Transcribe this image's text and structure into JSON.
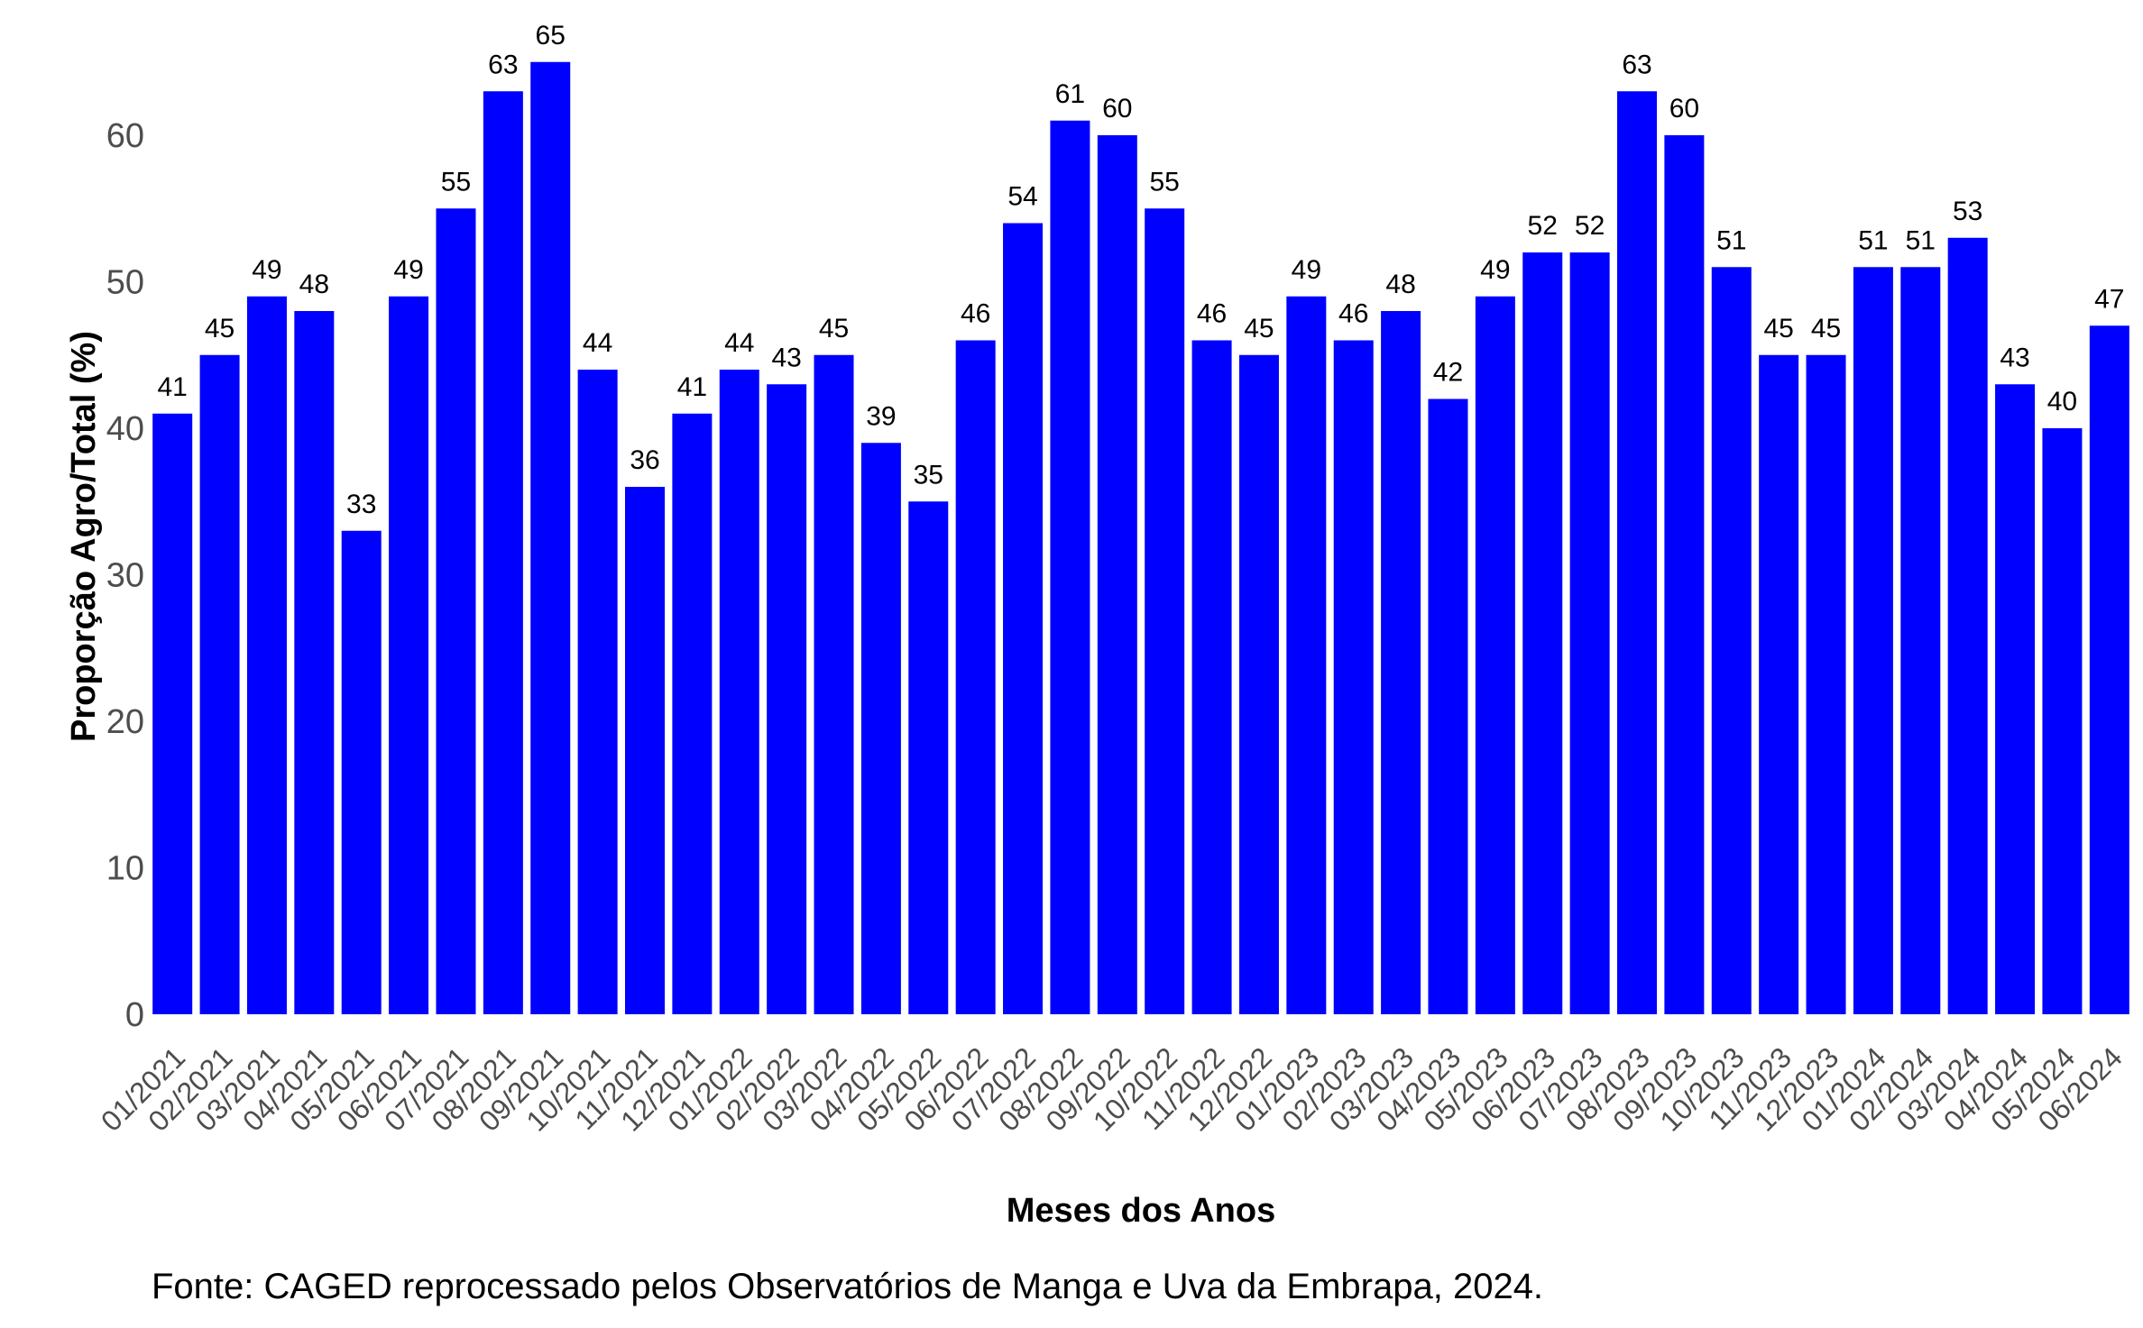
{
  "chart_data": {
    "type": "bar",
    "xlabel": "Meses dos Anos",
    "ylabel": "Proporção Agro/Total (%)",
    "caption": "Fonte: CAGED reprocessado pelos Observatórios de Manga e Uva da Embrapa, 2024.",
    "ylim": [
      0,
      65
    ],
    "yticks": [
      "0",
      "10",
      "20",
      "30",
      "40",
      "50",
      "60"
    ],
    "grid": false,
    "bar_color": "#0000FF",
    "categories": [
      "01/2021",
      "02/2021",
      "03/2021",
      "04/2021",
      "05/2021",
      "06/2021",
      "07/2021",
      "08/2021",
      "09/2021",
      "10/2021",
      "11/2021",
      "12/2021",
      "01/2022",
      "02/2022",
      "03/2022",
      "04/2022",
      "05/2022",
      "06/2022",
      "07/2022",
      "08/2022",
      "09/2022",
      "10/2022",
      "11/2022",
      "12/2022",
      "01/2023",
      "02/2023",
      "03/2023",
      "04/2023",
      "05/2023",
      "06/2023",
      "07/2023",
      "08/2023",
      "09/2023",
      "10/2023",
      "11/2023",
      "12/2023",
      "01/2024",
      "02/2024",
      "03/2024",
      "04/2024",
      "05/2024",
      "06/2024"
    ],
    "values": [
      41,
      45,
      49,
      48,
      33,
      49,
      55,
      63,
      65,
      44,
      36,
      41,
      44,
      43,
      45,
      39,
      35,
      46,
      54,
      61,
      60,
      55,
      46,
      45,
      49,
      46,
      48,
      42,
      49,
      52,
      52,
      63,
      60,
      51,
      45,
      45,
      51,
      51,
      53,
      43,
      40,
      47
    ]
  }
}
